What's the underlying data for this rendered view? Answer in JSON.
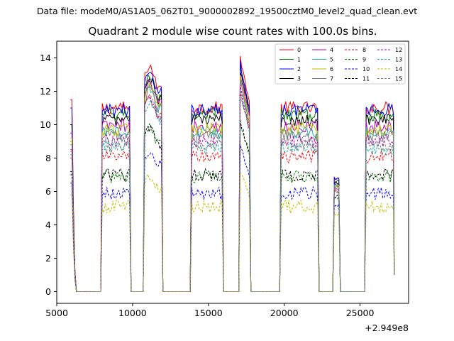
{
  "chart_data": {
    "type": "line",
    "suptitle": "Data file: modeM0/AS1A05_062T01_9000002892_19500cztM0_level2_quad_clean.evt",
    "title": "Quadrant 2 module wise count rates with 100.0s bins.",
    "xlabel": "",
    "ylabel": "",
    "x_offset_label": "+2.949e8",
    "xlim": [
      5000,
      28200
    ],
    "ylim": [
      -0.7,
      15.0
    ],
    "xticks": [
      5000,
      10000,
      15000,
      20000,
      25000
    ],
    "yticks": [
      0,
      2,
      4,
      6,
      8,
      10,
      12,
      14
    ],
    "legend_position": "upper right",
    "orbit_segments": [
      {
        "x_start": 6000,
        "x_end": 6300,
        "note": "decaying start"
      },
      {
        "x_start": 8000,
        "x_end": 9800
      },
      {
        "x_start": 10800,
        "x_end": 11900
      },
      {
        "x_start": 13900,
        "x_end": 15900
      },
      {
        "x_start": 17100,
        "x_end": 17700
      },
      {
        "x_start": 19800,
        "x_end": 22200
      },
      {
        "x_start": 23300,
        "x_end": 23600
      },
      {
        "x_start": 25400,
        "x_end": 27200
      }
    ],
    "series": [
      {
        "name": "0",
        "color": "#ff0000",
        "dash": "solid",
        "plateau": 11.0,
        "peak": 13.8,
        "start": 11.5,
        "spike": 6.7
      },
      {
        "name": "1",
        "color": "#008000",
        "dash": "solid",
        "plateau": 10.6,
        "peak": 13.2,
        "start": 10.0,
        "spike": 6.6
      },
      {
        "name": "2",
        "color": "#0000ff",
        "dash": "solid",
        "plateau": 10.9,
        "peak": 13.4,
        "start": 11.0,
        "spike": 6.8
      },
      {
        "name": "3",
        "color": "#000000",
        "dash": "solid",
        "plateau": 10.3,
        "peak": 13.0,
        "start": 10.0,
        "spike": 6.5
      },
      {
        "name": "4",
        "color": "#bf00bf",
        "dash": "solid",
        "plateau": 9.9,
        "peak": 12.8,
        "start": 9.5,
        "spike": 6.4
      },
      {
        "name": "5",
        "color": "#20b2aa",
        "dash": "solid",
        "plateau": 9.5,
        "peak": 12.5,
        "start": 9.0,
        "spike": 6.3
      },
      {
        "name": "6",
        "color": "#bfbf00",
        "dash": "solid",
        "plateau": 9.7,
        "peak": 12.6,
        "start": 9.2,
        "spike": 6.3
      },
      {
        "name": "7",
        "color": "#808080",
        "dash": "solid",
        "plateau": 9.3,
        "peak": 12.3,
        "start": 8.8,
        "spike": 6.2
      },
      {
        "name": "8",
        "color": "#ff0000",
        "dash": "dashed",
        "plateau": 8.1,
        "peak": 11.8,
        "start": 8.0,
        "spike": 6.0
      },
      {
        "name": "9",
        "color": "#008000",
        "dash": "dashed",
        "plateau": 6.9,
        "peak": 10.0,
        "start": 7.0,
        "spike": 5.6
      },
      {
        "name": "10",
        "color": "#0000ff",
        "dash": "dashed",
        "plateau": 5.9,
        "peak": 8.6,
        "start": 6.5,
        "spike": 5.2
      },
      {
        "name": "11",
        "color": "#000000",
        "dash": "dashed",
        "plateau": 7.0,
        "peak": 10.0,
        "start": 7.2,
        "spike": 5.7
      },
      {
        "name": "12",
        "color": "#bf00bf",
        "dash": "dashed",
        "plateau": 9.0,
        "peak": 12.0,
        "start": 8.5,
        "spike": 6.1
      },
      {
        "name": "13",
        "color": "#20b2aa",
        "dash": "dashed",
        "plateau": 8.6,
        "peak": 11.6,
        "start": 8.2,
        "spike": 6.0
      },
      {
        "name": "14",
        "color": "#bfbf00",
        "dash": "dashed",
        "plateau": 5.1,
        "peak": 7.0,
        "start": 5.8,
        "spike": 4.6
      },
      {
        "name": "15",
        "color": "#808080",
        "dash": "dashed",
        "plateau": 8.8,
        "peak": 11.9,
        "start": 8.4,
        "spike": 6.0
      }
    ]
  }
}
